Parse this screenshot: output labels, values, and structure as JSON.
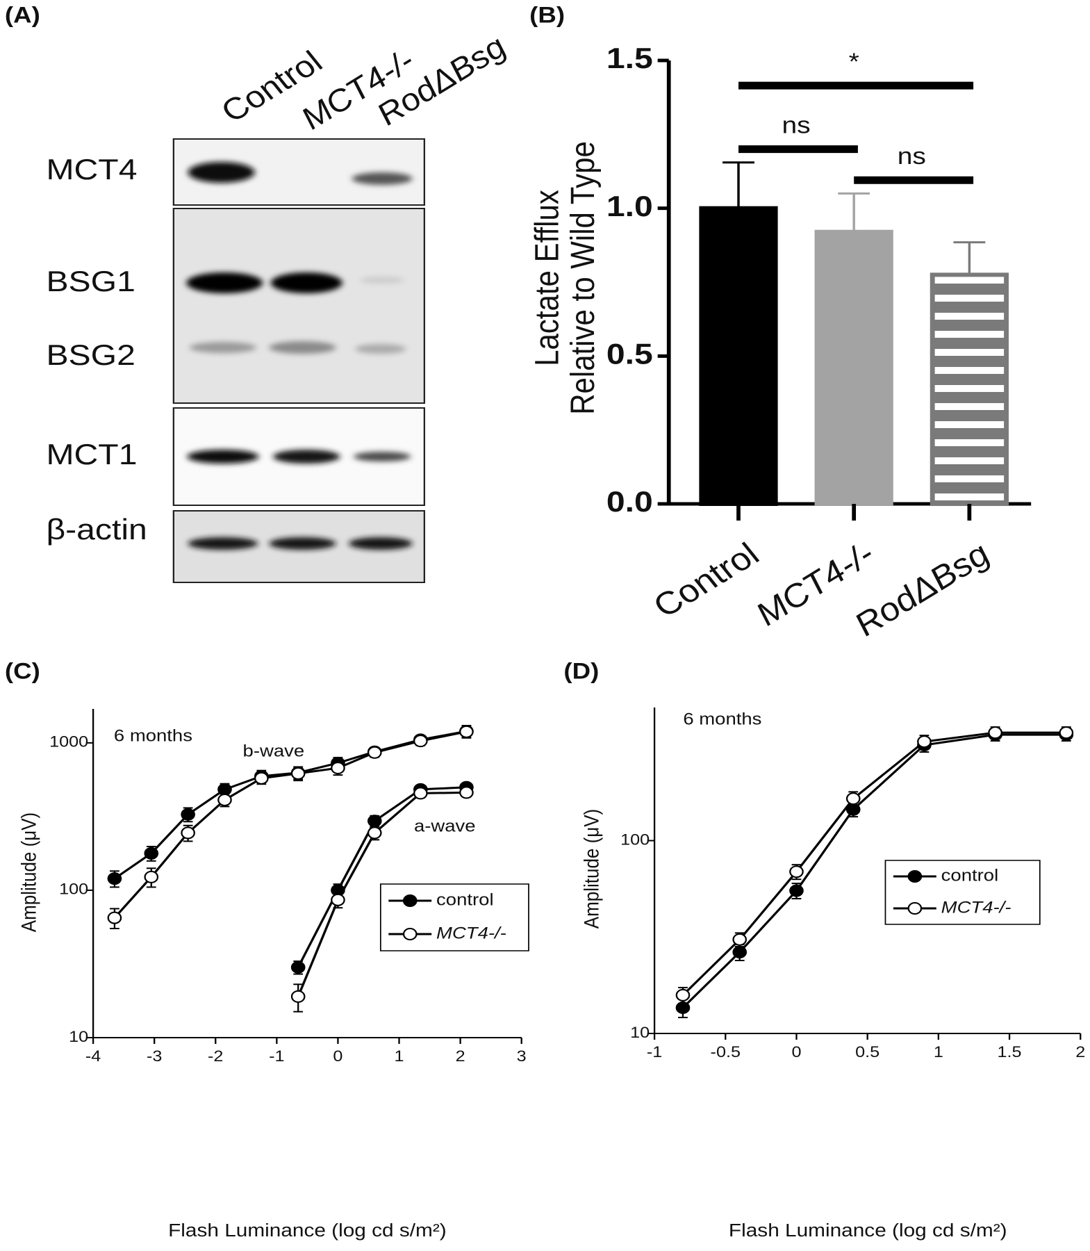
{
  "blot": {
    "panel_label": "(A)",
    "lanes": [
      "Control",
      "MCT4-/-",
      "RodΔBsg"
    ],
    "bands": [
      "MCT4",
      "BSG1",
      "BSG2",
      "MCT1",
      "β-actin"
    ]
  },
  "chart_data": [
    {
      "type": "bar",
      "panel_label": "(B)",
      "ylabel": [
        "Lactate Efflux",
        "Relative to  Wild Type"
      ],
      "categories": [
        "Control",
        "MCT4-/-",
        "RodΔBsg"
      ],
      "values": [
        1.0,
        0.92,
        0.775
      ],
      "errors": [
        0.155,
        0.13,
        0.11
      ],
      "colors": [
        "#000000",
        "#a3a3a3",
        "#7a7a7a"
      ],
      "hatch": [
        false,
        false,
        true
      ],
      "ylim": [
        0,
        1.5
      ],
      "yticks": [
        {
          "value": 0,
          "label": "0.0"
        },
        0.5,
        {
          "value": 1,
          "label": "1.0"
        },
        1.5
      ],
      "comparisons": [
        {
          "pair": [
            0,
            1
          ],
          "label": "ns"
        },
        {
          "pair": [
            1,
            2
          ],
          "label": "ns"
        },
        {
          "pair": [
            0,
            2
          ],
          "label": "*"
        }
      ]
    },
    {
      "type": "line",
      "panel_label": "(C)",
      "xlabel": "Flash Luminance (log cd s/m²)",
      "ylabel": "Amplitude (μV)",
      "annotations": [
        "6 months",
        "b-wave",
        "a-wave"
      ],
      "log_y": true,
      "xlim": [
        -4,
        3
      ],
      "xticks": [
        -4,
        -3,
        -2,
        -1,
        0,
        1,
        2,
        3
      ],
      "ylim": [
        10,
        1700
      ],
      "yticks": [
        10,
        100,
        1000
      ],
      "legend": "lower right",
      "series": [
        {
          "name": "control",
          "color": "#000000",
          "marker": "filled",
          "x": [
            -3.65,
            -3.05,
            -2.45,
            -1.85,
            -1.25,
            -0.65,
            0,
            0.6,
            1.35,
            2.1,
            null,
            -0.65,
            0,
            0.6,
            1.35,
            2.1
          ],
          "values": [
            120,
            178,
            327,
            483,
            594,
            627,
            730,
            870,
            1050,
            1200,
            null,
            30,
            100,
            295,
            483,
            500
          ],
          "errors": [
            15,
            20,
            35,
            45,
            55,
            60,
            65,
            60,
            70,
            110,
            null,
            3,
            10,
            25,
            30,
            30
          ]
        },
        {
          "name": "MCT4-/-",
          "color": "#000000",
          "marker": "open",
          "x": [
            -3.65,
            -3.05,
            -2.45,
            -1.85,
            -1.25,
            -0.65,
            0,
            0.6,
            1.35,
            2.1,
            null,
            -0.65,
            0,
            0.6,
            1.35,
            2.1
          ],
          "values": [
            65,
            123,
            245,
            410,
            575,
            620,
            675,
            860,
            1030,
            1190,
            null,
            19,
            86,
            245,
            455,
            460
          ],
          "errors": [
            10,
            18,
            30,
            40,
            50,
            65,
            70,
            60,
            70,
            110,
            null,
            4,
            10,
            25,
            30,
            30
          ]
        }
      ]
    },
    {
      "type": "line",
      "panel_label": "(D)",
      "xlabel": "Flash Luminance (log cd s/m²)",
      "ylabel": "Amplitude (μV)",
      "annotations": [
        "6 months"
      ],
      "log_y": true,
      "xlim": [
        -1,
        2
      ],
      "xticks": [
        -1,
        -0.5,
        0,
        0.5,
        1,
        1.5,
        2
      ],
      "ylim": [
        10,
        490
      ],
      "yticks": [
        10,
        100
      ],
      "legend": "center right",
      "series": [
        {
          "name": "control",
          "color": "#000000",
          "marker": "filled",
          "x": [
            -0.8,
            -0.4,
            0,
            0.4,
            0.9,
            1.4,
            1.9
          ],
          "values": [
            13.6,
            26.4,
            55,
            145,
            313,
            354,
            354
          ],
          "errors": [
            1.5,
            2.5,
            5,
            12,
            25,
            25,
            25
          ]
        },
        {
          "name": "MCT4-/-",
          "color": "#000000",
          "marker": "open",
          "x": [
            -0.8,
            -0.4,
            0,
            0.4,
            0.9,
            1.4,
            1.9
          ],
          "values": [
            15.8,
            30.7,
            69,
            165,
            326,
            363,
            363
          ],
          "errors": [
            1.5,
            2.5,
            6,
            14,
            25,
            25,
            25
          ]
        }
      ]
    }
  ]
}
